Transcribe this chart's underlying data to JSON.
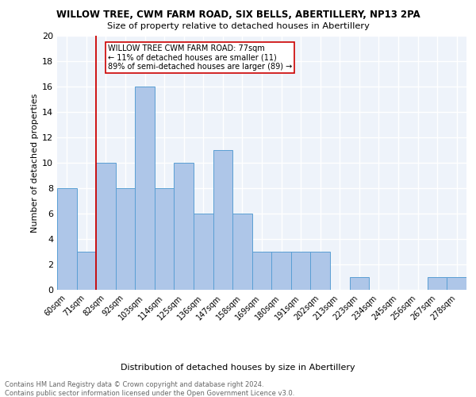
{
  "title": "WILLOW TREE, CWM FARM ROAD, SIX BELLS, ABERTILLERY, NP13 2PA",
  "subtitle": "Size of property relative to detached houses in Abertillery",
  "xlabel": "Distribution of detached houses by size in Abertillery",
  "ylabel": "Number of detached properties",
  "categories": [
    "60sqm",
    "71sqm",
    "82sqm",
    "92sqm",
    "103sqm",
    "114sqm",
    "125sqm",
    "136sqm",
    "147sqm",
    "158sqm",
    "169sqm",
    "180sqm",
    "191sqm",
    "202sqm",
    "213sqm",
    "223sqm",
    "234sqm",
    "245sqm",
    "256sqm",
    "267sqm",
    "278sqm"
  ],
  "values": [
    8,
    3,
    10,
    8,
    16,
    8,
    10,
    6,
    11,
    6,
    3,
    3,
    3,
    3,
    0,
    1,
    0,
    0,
    0,
    1,
    1
  ],
  "bar_color": "#aec6e8",
  "bar_edge_color": "#5a9fd4",
  "ylim": [
    0,
    20
  ],
  "yticks": [
    0,
    2,
    4,
    6,
    8,
    10,
    12,
    14,
    16,
    18,
    20
  ],
  "vline_x_idx": 1,
  "vline_color": "#cc0000",
  "annotation_text": "WILLOW TREE CWM FARM ROAD: 77sqm\n← 11% of detached houses are smaller (11)\n89% of semi-detached houses are larger (89) →",
  "footer_line1": "Contains HM Land Registry data © Crown copyright and database right 2024.",
  "footer_line2": "Contains public sector information licensed under the Open Government Licence v3.0.",
  "background_color": "#eef3fa",
  "grid_color": "#ffffff"
}
